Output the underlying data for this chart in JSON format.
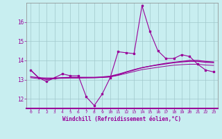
{
  "xlabel": "Windchill (Refroidissement éolien,°C)",
  "background_color": "#c8eef0",
  "grid_color": "#a0ccd0",
  "line_color": "#990099",
  "x": [
    0,
    1,
    2,
    3,
    4,
    5,
    6,
    7,
    8,
    9,
    10,
    11,
    12,
    13,
    14,
    15,
    16,
    17,
    18,
    19,
    20,
    21,
    22,
    23
  ],
  "y_main": [
    13.5,
    13.1,
    12.9,
    13.1,
    13.3,
    13.2,
    13.2,
    12.1,
    11.65,
    12.25,
    13.1,
    14.45,
    14.4,
    14.35,
    16.85,
    15.5,
    14.5,
    14.1,
    14.1,
    14.3,
    14.2,
    13.8,
    13.5,
    13.4
  ],
  "y_trend1": [
    13.5,
    13.1,
    13.0,
    13.05,
    13.1,
    13.1,
    13.1,
    13.1,
    13.1,
    13.12,
    13.15,
    13.25,
    13.38,
    13.5,
    13.62,
    13.7,
    13.78,
    13.85,
    13.9,
    13.95,
    14.0,
    14.0,
    13.95,
    13.92
  ],
  "y_trend2": [
    13.15,
    13.1,
    13.08,
    13.08,
    13.1,
    13.12,
    13.12,
    13.12,
    13.12,
    13.14,
    13.18,
    13.28,
    13.4,
    13.52,
    13.62,
    13.7,
    13.76,
    13.82,
    13.88,
    13.92,
    13.95,
    13.95,
    13.9,
    13.88
  ],
  "y_trend3": [
    13.1,
    13.05,
    13.05,
    13.06,
    13.07,
    13.08,
    13.08,
    13.09,
    13.1,
    13.11,
    13.14,
    13.22,
    13.32,
    13.42,
    13.52,
    13.58,
    13.64,
    13.7,
    13.75,
    13.78,
    13.8,
    13.8,
    13.76,
    13.74
  ],
  "ylim": [
    11.5,
    17.0
  ],
  "yticks": [
    12,
    13,
    14,
    15,
    16
  ],
  "xlim": [
    -0.5,
    23.5
  ],
  "xticks": [
    0,
    1,
    2,
    3,
    4,
    5,
    6,
    7,
    8,
    9,
    10,
    11,
    12,
    13,
    14,
    15,
    16,
    17,
    18,
    19,
    20,
    21,
    22,
    23
  ]
}
